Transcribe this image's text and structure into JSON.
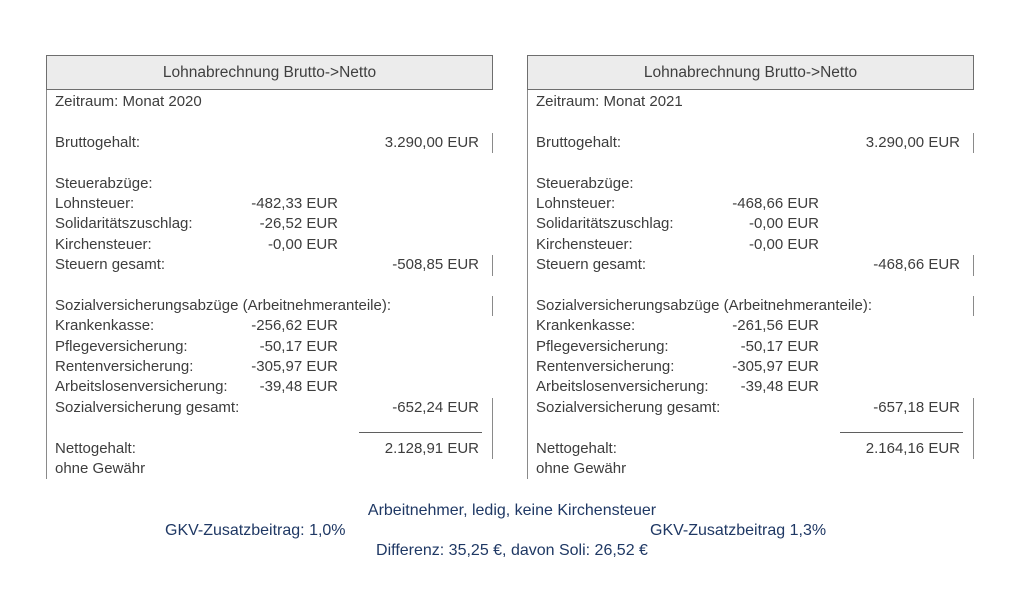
{
  "panels": [
    {
      "title": "Lohnabrechnung Brutto->Netto",
      "rows": [
        {
          "label": "Zeitraum: Monat 2020"
        },
        {},
        {
          "label": "Bruttogehalt:",
          "right": "3.290,00 EUR",
          "tick": true
        },
        {},
        {
          "label": "Steuerabzüge:"
        },
        {
          "label": "Lohnsteuer:",
          "mid": "-482,33 EUR"
        },
        {
          "label": "Solidaritätszuschlag:",
          "mid": "-26,52 EUR"
        },
        {
          "label": "Kirchensteuer:",
          "mid": "-0,00 EUR"
        },
        {
          "label": "Steuern gesamt:",
          "right": "-508,85 EUR",
          "tick": true
        },
        {},
        {
          "label": "Sozialversicherungsabzüge (Arbeitnehmeranteile):",
          "tick": true
        },
        {
          "label": "Krankenkasse:",
          "mid": "-256,62 EUR"
        },
        {
          "label": "Pflegeversicherung:",
          "mid": "-50,17 EUR"
        },
        {
          "label": "Rentenversicherung:",
          "mid": "-305,97 EUR"
        },
        {
          "label": "Arbeitslosenversicherung:",
          "mid": "-39,48 EUR"
        },
        {
          "label": "Sozialversicherung gesamt:",
          "right": "-652,24 EUR",
          "tick": true
        },
        {
          "rule": true,
          "tick": true
        },
        {
          "label": "Nettogehalt:",
          "right": "2.128,91 EUR",
          "tick": true
        },
        {
          "label": "ohne Gewähr"
        }
      ]
    },
    {
      "title": "Lohnabrechnung Brutto->Netto",
      "rows": [
        {
          "label": "Zeitraum: Monat 2021"
        },
        {},
        {
          "label": "Bruttogehalt:",
          "right": "3.290,00 EUR",
          "tick": true
        },
        {},
        {
          "label": "Steuerabzüge:"
        },
        {
          "label": "Lohnsteuer:",
          "mid": "-468,66 EUR"
        },
        {
          "label": "Solidaritätszuschlag:",
          "mid": "-0,00 EUR"
        },
        {
          "label": "Kirchensteuer:",
          "mid": "-0,00 EUR"
        },
        {
          "label": "Steuern gesamt:",
          "right": "-468,66 EUR",
          "tick": true
        },
        {},
        {
          "label": "Sozialversicherungsabzüge (Arbeitnehmeranteile):",
          "tick": true
        },
        {
          "label": "Krankenkasse:",
          "mid": "-261,56 EUR"
        },
        {
          "label": "Pflegeversicherung:",
          "mid": "-50,17 EUR"
        },
        {
          "label": "Rentenversicherung:",
          "mid": "-305,97 EUR"
        },
        {
          "label": "Arbeitslosenversicherung:",
          "mid": "-39,48 EUR"
        },
        {
          "label": "Sozialversicherung gesamt:",
          "right": "-657,18 EUR",
          "tick": true
        },
        {
          "rule": true,
          "tick": true
        },
        {
          "label": "Nettogehalt:",
          "right": "2.164,16 EUR",
          "tick": true
        },
        {
          "label": "ohne Gewähr"
        }
      ]
    }
  ],
  "footer": {
    "line1": "Arbeitnehmer, ledig, keine Kirchensteuer",
    "line2_left": "GKV-Zusatzbeitrag: 1,0%",
    "line2_right": "GKV-Zusatzbeitrag 1,3%",
    "line3": "Differenz: 35,25 €, davon Soli: 26,52 €"
  },
  "colors": {
    "header_fill": "#ececec",
    "border_gray": "#8a8a8a",
    "body_text": "#3d3d3d",
    "footer_navy": "#1f3864"
  }
}
